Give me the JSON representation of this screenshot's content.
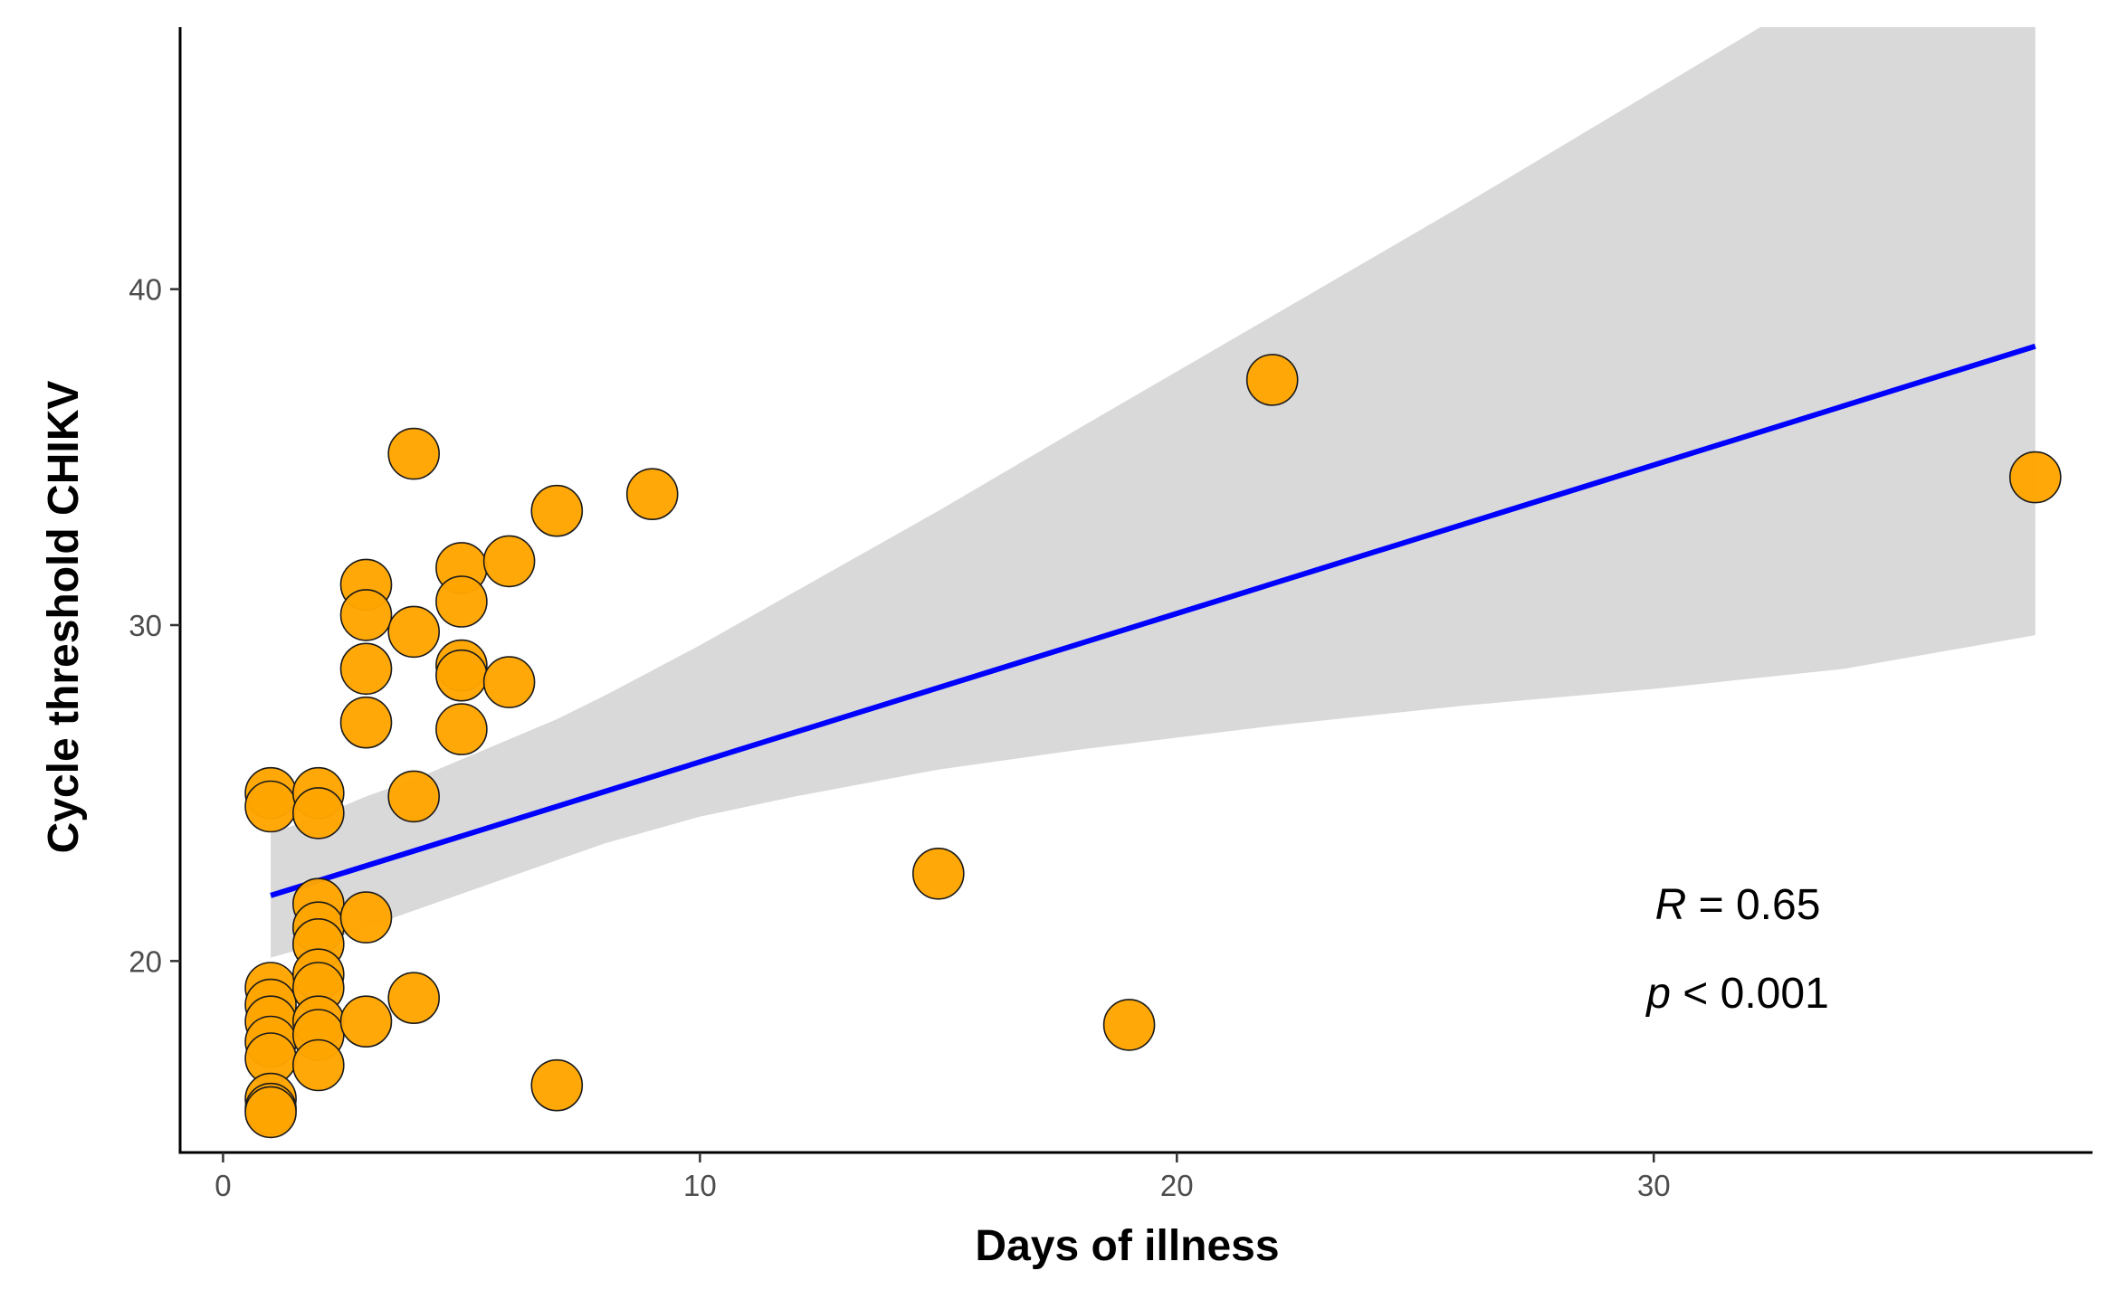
{
  "chart_data": {
    "type": "scatter",
    "xlabel": "Days of illness",
    "ylabel": "Cycle threshold CHIKV",
    "xlim": [
      -0.9,
      39.2
    ],
    "ylim": [
      14.3,
      47.8
    ],
    "x_ticks": [
      0,
      10,
      20,
      30
    ],
    "y_ticks": [
      20,
      30,
      40
    ],
    "x_tick_labels": [
      "0",
      "10",
      "20",
      "30"
    ],
    "y_tick_labels": [
      "20",
      "30",
      "40"
    ],
    "grid": false,
    "legend": "none",
    "points": [
      {
        "x": 1,
        "y": 25.0
      },
      {
        "x": 1,
        "y": 24.6
      },
      {
        "x": 1,
        "y": 19.2
      },
      {
        "x": 1,
        "y": 18.7
      },
      {
        "x": 1,
        "y": 18.2
      },
      {
        "x": 1,
        "y": 17.6
      },
      {
        "x": 1,
        "y": 17.1
      },
      {
        "x": 1,
        "y": 15.9
      },
      {
        "x": 1,
        "y": 15.6
      },
      {
        "x": 1,
        "y": 15.5
      },
      {
        "x": 2,
        "y": 25.0
      },
      {
        "x": 2,
        "y": 24.4
      },
      {
        "x": 2,
        "y": 21.7
      },
      {
        "x": 2,
        "y": 21.0
      },
      {
        "x": 2,
        "y": 20.5
      },
      {
        "x": 2,
        "y": 19.6
      },
      {
        "x": 2,
        "y": 19.2
      },
      {
        "x": 2,
        "y": 18.2
      },
      {
        "x": 2,
        "y": 17.8
      },
      {
        "x": 2,
        "y": 16.9
      },
      {
        "x": 3,
        "y": 31.2
      },
      {
        "x": 3,
        "y": 30.3
      },
      {
        "x": 3,
        "y": 28.7
      },
      {
        "x": 3,
        "y": 27.1
      },
      {
        "x": 3,
        "y": 21.3
      },
      {
        "x": 3,
        "y": 18.2
      },
      {
        "x": 4,
        "y": 35.1
      },
      {
        "x": 4,
        "y": 29.8
      },
      {
        "x": 4,
        "y": 24.9
      },
      {
        "x": 4,
        "y": 18.9
      },
      {
        "x": 5,
        "y": 31.7
      },
      {
        "x": 5,
        "y": 30.7
      },
      {
        "x": 5,
        "y": 28.8
      },
      {
        "x": 5,
        "y": 28.5
      },
      {
        "x": 5,
        "y": 26.9
      },
      {
        "x": 6,
        "y": 31.9
      },
      {
        "x": 6,
        "y": 28.3
      },
      {
        "x": 7,
        "y": 33.4
      },
      {
        "x": 7,
        "y": 16.3
      },
      {
        "x": 9,
        "y": 33.9
      },
      {
        "x": 15,
        "y": 22.6
      },
      {
        "x": 19,
        "y": 18.1
      },
      {
        "x": 22,
        "y": 37.3
      },
      {
        "x": 38,
        "y": 34.4
      }
    ],
    "regression": {
      "x": [
        1,
        38
      ],
      "y": [
        21.95,
        38.3
      ]
    },
    "confidence_band": {
      "x": [
        1,
        2,
        3,
        4,
        5,
        6,
        7,
        8,
        10,
        12,
        15,
        18,
        22,
        26,
        30,
        34,
        38
      ],
      "upper": [
        23.8,
        24.3,
        24.9,
        25.4,
        26.0,
        26.6,
        27.2,
        27.9,
        29.4,
        31.0,
        33.4,
        35.9,
        39.2,
        42.5,
        45.9,
        49.3,
        52.7
      ],
      "lower": [
        20.1,
        20.5,
        21.0,
        21.5,
        22.0,
        22.5,
        23.0,
        23.5,
        24.3,
        24.9,
        25.7,
        26.3,
        27.0,
        27.6,
        28.1,
        28.7,
        29.7
      ]
    },
    "annotations": [
      {
        "var": "R",
        "op": " = ",
        "value": "0.65"
      },
      {
        "var": "p",
        "op": " < ",
        "value": "0.001"
      }
    ],
    "colors": {
      "points": "#FFA500",
      "point_stroke": "#1a1a1a",
      "line": "#0000FF",
      "band": "#D9D9D9",
      "axis": "#000000"
    }
  }
}
